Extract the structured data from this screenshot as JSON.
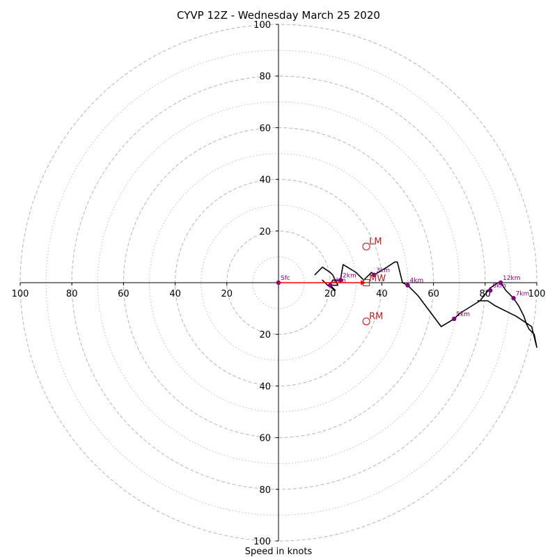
{
  "chart_data": {
    "type": "line",
    "title": "CYVP 12Z - Wednesday March 25 2020",
    "xlabel": "Speed in knots",
    "ylabel": "",
    "xlim": [
      -100,
      100
    ],
    "ylim": [
      -100,
      100
    ],
    "rings_major": [
      20,
      40,
      60,
      80,
      100
    ],
    "rings_minor": [
      10,
      30,
      50,
      70,
      90
    ],
    "x_tick_labels": [
      "100",
      "80",
      "60",
      "40",
      "20",
      "20",
      "40",
      "60",
      "80",
      "100"
    ],
    "x_tick_values": [
      -100,
      -80,
      -60,
      -40,
      -20,
      20,
      40,
      60,
      80,
      100
    ],
    "y_tick_labels": [
      "100",
      "80",
      "60",
      "40",
      "20",
      "20",
      "40",
      "60",
      "80",
      "100"
    ],
    "y_tick_values": [
      100,
      80,
      60,
      40,
      20,
      -20,
      -40,
      -60,
      -80,
      -100
    ],
    "colors": {
      "ring": "#bbbbbb",
      "trace": "#000000",
      "height_marker": "#800080",
      "motion": "#b22222",
      "shear_vector": "#ff0000"
    },
    "series": [
      {
        "values": [
          [
            14,
            3
          ],
          [
            17,
            6
          ],
          [
            20,
            4
          ],
          [
            21,
            3
          ],
          [
            22,
            1
          ],
          [
            23,
            -1
          ],
          [
            19,
            -1
          ],
          [
            17,
            1
          ],
          [
            19,
            -1
          ],
          [
            22,
            -3
          ],
          [
            20,
            -1
          ],
          [
            21,
            1
          ],
          [
            24,
            1
          ],
          [
            25,
            7
          ],
          [
            30,
            4
          ],
          [
            33,
            1
          ],
          [
            35,
            3
          ],
          [
            36,
            4
          ],
          [
            37,
            3
          ],
          [
            42,
            6
          ],
          [
            45,
            8
          ],
          [
            46,
            8
          ],
          [
            48,
            0
          ],
          [
            50,
            -1
          ],
          [
            54,
            -5
          ],
          [
            63,
            -17
          ],
          [
            68,
            -14
          ],
          [
            70,
            -12
          ],
          [
            78,
            -7
          ],
          [
            82,
            -2
          ],
          [
            85,
            0
          ],
          [
            86,
            0
          ],
          [
            88,
            -3
          ],
          [
            91,
            -6
          ],
          [
            93,
            -9
          ],
          [
            95,
            -13
          ],
          [
            96,
            -16
          ],
          [
            97,
            -18
          ],
          [
            99,
            -20
          ],
          [
            100,
            -25
          ],
          [
            98,
            -17
          ],
          [
            95,
            -15
          ],
          [
            92,
            -13
          ],
          [
            88,
            -11
          ],
          [
            84,
            -9
          ],
          [
            81,
            -7
          ],
          [
            77,
            -7
          ]
        ]
      }
    ],
    "height_markers": [
      {
        "label": "Sfc",
        "x": 0,
        "y": 0
      },
      {
        "label": "1km",
        "x": 20,
        "y": -1
      },
      {
        "label": "2km",
        "x": 24,
        "y": 1
      },
      {
        "label": "3km",
        "x": 37,
        "y": 3
      },
      {
        "label": "4km",
        "x": 50,
        "y": -1
      },
      {
        "label": "5km",
        "x": 68,
        "y": -14
      },
      {
        "label": "6km",
        "x": 82,
        "y": -3
      },
      {
        "label": "7km",
        "x": 91,
        "y": -6
      },
      {
        "label": "12km",
        "x": 86,
        "y": 0
      }
    ],
    "storm_motion": [
      {
        "label": "LM",
        "x": 34,
        "y": 14,
        "marker": "circle"
      },
      {
        "label": "RM",
        "x": 34,
        "y": -15,
        "marker": "circle"
      },
      {
        "label": "MW",
        "x": 34,
        "y": 0,
        "marker": "square"
      }
    ],
    "shear_vector": {
      "from": [
        0,
        0
      ],
      "to": [
        34,
        0
      ]
    }
  }
}
